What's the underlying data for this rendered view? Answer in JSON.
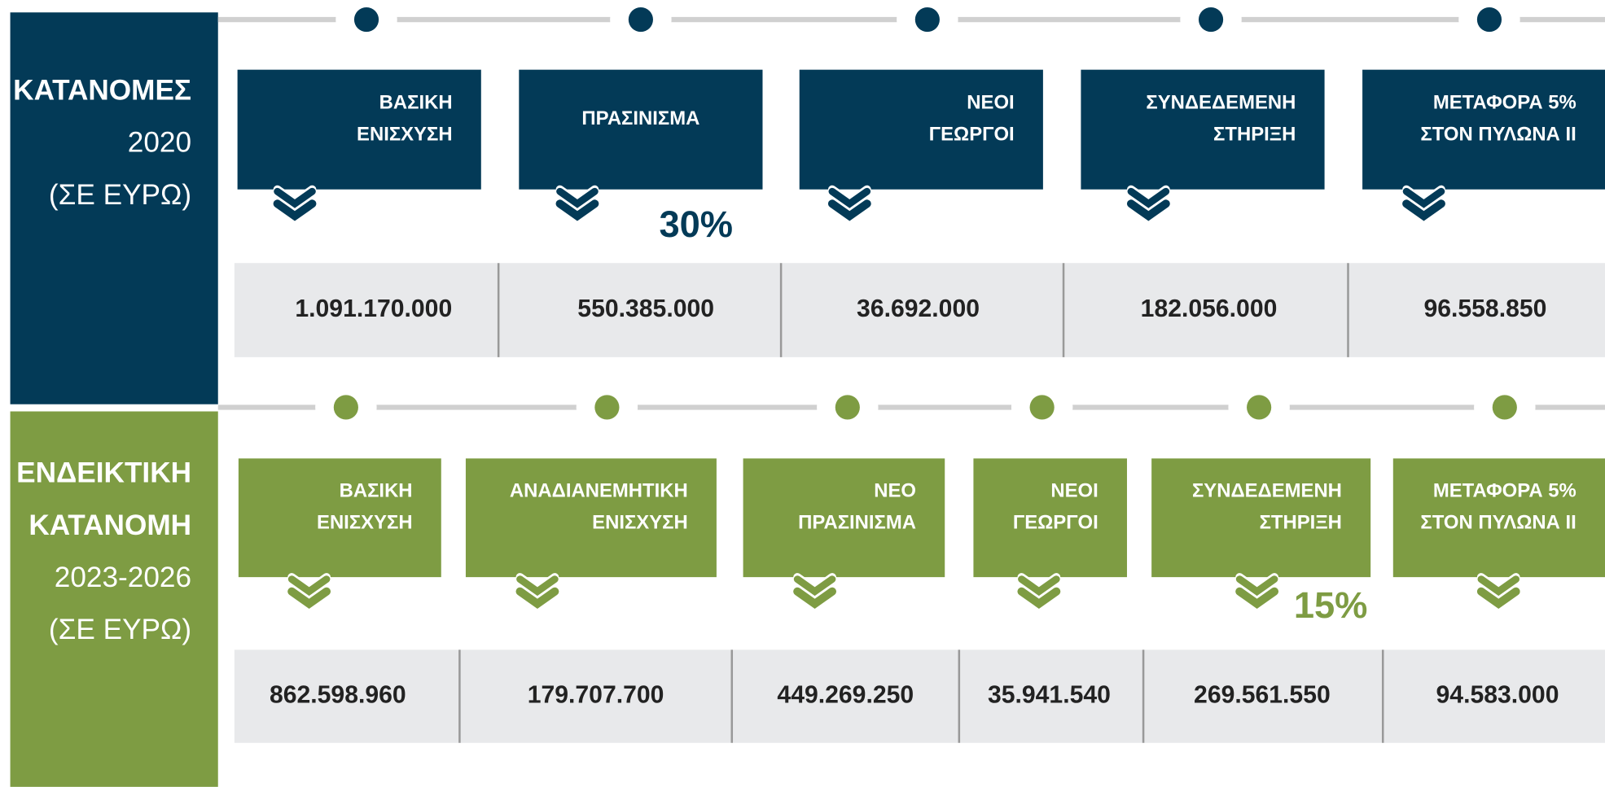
{
  "sections": [
    {
      "label": [
        "ΚΑΤΑΝΟΜΕΣ",
        "2020",
        "(ΣΕ ΕΥΡΩ)"
      ],
      "items": [
        {
          "title": [
            "ΒΑΣΙΚΗ",
            "ΕΝΙΣΧΥΣΗ"
          ],
          "value": "1.091.170.000"
        },
        {
          "title": [
            "ΠΡΑΣΙΝΙΣΜΑ"
          ],
          "value": "550.385.000"
        },
        {
          "title": [
            "ΝΕΟΙ",
            "ΓΕΩΡΓΟΙ"
          ],
          "value": "36.692.000"
        },
        {
          "title": [
            "ΣΥΝΔΕΔΕΜΕΝΗ",
            "ΣΤΗΡΙΞΗ"
          ],
          "value": "182.056.000"
        },
        {
          "title": [
            "ΜΕΤΑΦΟΡΑ 5%",
            "ΣΤΟΝ ΠΥΛΩΝΑ  ΙΙ"
          ],
          "value": "96.558.850"
        }
      ],
      "annotation": "30%"
    },
    {
      "label": [
        "ΕΝΔΕΙΚΤΙΚΗ",
        "ΚΑΤΑΝΟΜΗ",
        "2023-2026",
        "(ΣΕ ΕΥΡΩ)"
      ],
      "items": [
        {
          "title": [
            "ΒΑΣΙΚΗ",
            "ΕΝΙΣΧΥΣΗ"
          ],
          "value": "862.598.960"
        },
        {
          "title": [
            "ΑΝΑΔΙΑΝΕΜΗΤΙΚΗ",
            "ΕΝΙΣΧΥΣΗ"
          ],
          "value": "179.707.700"
        },
        {
          "title": [
            "ΝΕΟ",
            "ΠΡΑΣΙΝΙΣΜΑ"
          ],
          "value": "449.269.250"
        },
        {
          "title": [
            "ΝΕΟΙ",
            "ΓΕΩΡΓΟΙ"
          ],
          "value": "35.941.540"
        },
        {
          "title": [
            "ΣΥΝΔΕΔΕΜΕΝΗ",
            "ΣΤΗΡΙΞΗ"
          ],
          "value": "269.561.550"
        },
        {
          "title": [
            "ΜΕΤΑΦΟΡΑ 5%",
            "ΣΤΟΝ ΠΥΛΩΝΑ ΙΙ"
          ],
          "value": "94.583.000"
        }
      ],
      "annotation": "15%"
    }
  ]
}
